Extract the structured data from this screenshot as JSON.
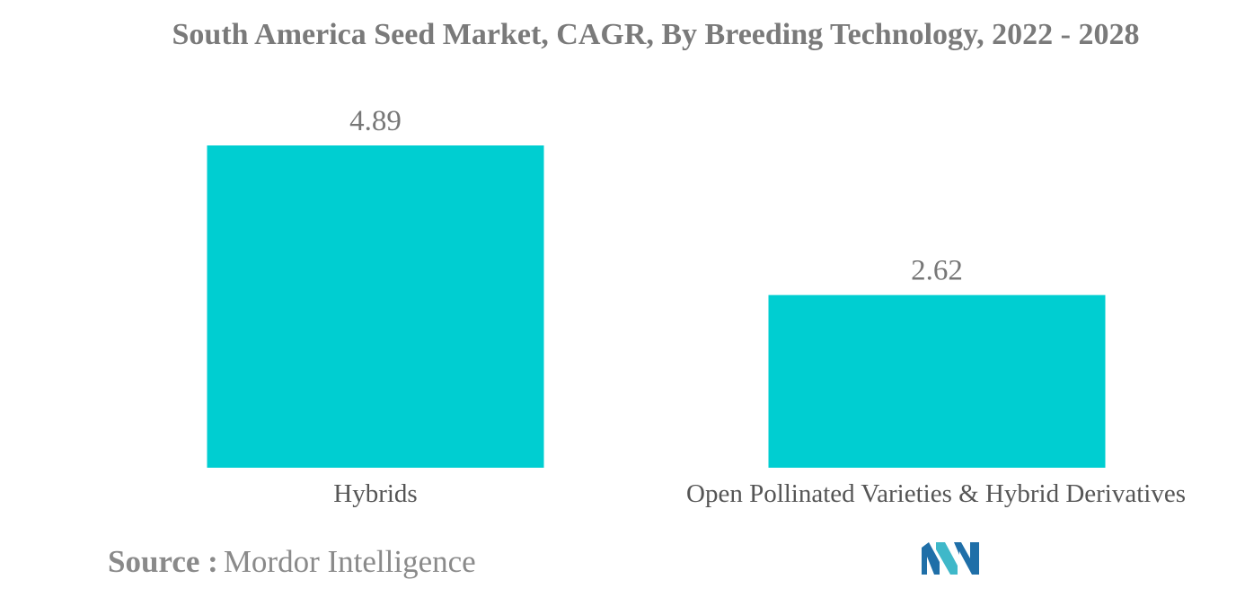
{
  "chart_data": {
    "type": "bar",
    "title": "South America Seed Market, CAGR, By Breeding Technology, 2022 - 2028",
    "categories": [
      "Hybrids",
      "Open Pollinated Varieties & Hybrid Derivatives"
    ],
    "values": [
      4.89,
      2.62
    ],
    "data_labels": [
      "4.89",
      "2.62"
    ],
    "xlabel": "",
    "ylabel": "",
    "ylim": [
      0,
      4.89
    ],
    "grid": false,
    "legend": "none",
    "bar_color": "#00ced1"
  },
  "footer": {
    "source_label": "Source :",
    "source_value": "Mordor Intelligence",
    "logo_icon": "mordor-intelligence-logo",
    "logo_colors": [
      "#1f6fa8",
      "#3fb8c9"
    ]
  }
}
